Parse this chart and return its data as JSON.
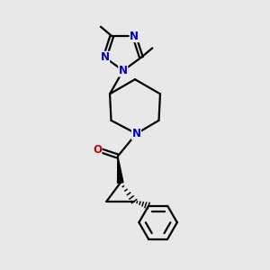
{
  "bg_color": "#e8e8e8",
  "bond_color": "#000000",
  "N_color": "#0000cc",
  "O_color": "#cc0000",
  "line_width": 1.6,
  "figsize": [
    3.0,
    3.0
  ],
  "dpi": 100,
  "xlim": [
    0,
    10
  ],
  "ylim": [
    0,
    10
  ]
}
